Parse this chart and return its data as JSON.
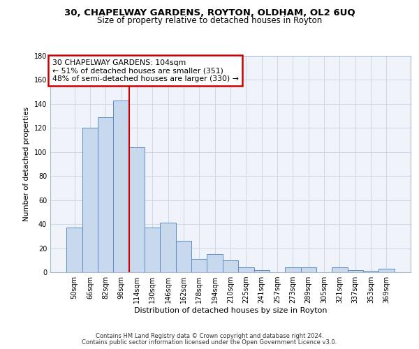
{
  "title": "30, CHAPELWAY GARDENS, ROYTON, OLDHAM, OL2 6UQ",
  "subtitle": "Size of property relative to detached houses in Royton",
  "xlabel": "Distribution of detached houses by size in Royton",
  "ylabel": "Number of detached properties",
  "bar_labels": [
    "50sqm",
    "66sqm",
    "82sqm",
    "98sqm",
    "114sqm",
    "130sqm",
    "146sqm",
    "162sqm",
    "178sqm",
    "194sqm",
    "210sqm",
    "225sqm",
    "241sqm",
    "257sqm",
    "273sqm",
    "289sqm",
    "305sqm",
    "321sqm",
    "337sqm",
    "353sqm",
    "369sqm"
  ],
  "bar_values": [
    37,
    120,
    129,
    143,
    104,
    37,
    41,
    26,
    11,
    15,
    10,
    4,
    2,
    0,
    4,
    4,
    0,
    4,
    2,
    1,
    3
  ],
  "bar_color": "#c9d9ed",
  "bar_edge_color": "#5b8dc8",
  "vline_x": 3.5,
  "vline_color": "#cc0000",
  "annotation_title": "30 CHAPELWAY GARDENS: 104sqm",
  "annotation_line1": "← 51% of detached houses are smaller (351)",
  "annotation_line2": "48% of semi-detached houses are larger (330) →",
  "annotation_box_color": "#cc0000",
  "ylim": [
    0,
    180
  ],
  "yticks": [
    0,
    20,
    40,
    60,
    80,
    100,
    120,
    140,
    160,
    180
  ],
  "grid_color": "#d0d8e8",
  "background_color": "#f0f4fa",
  "footer1": "Contains HM Land Registry data © Crown copyright and database right 2024.",
  "footer2": "Contains public sector information licensed under the Open Government Licence v3.0."
}
